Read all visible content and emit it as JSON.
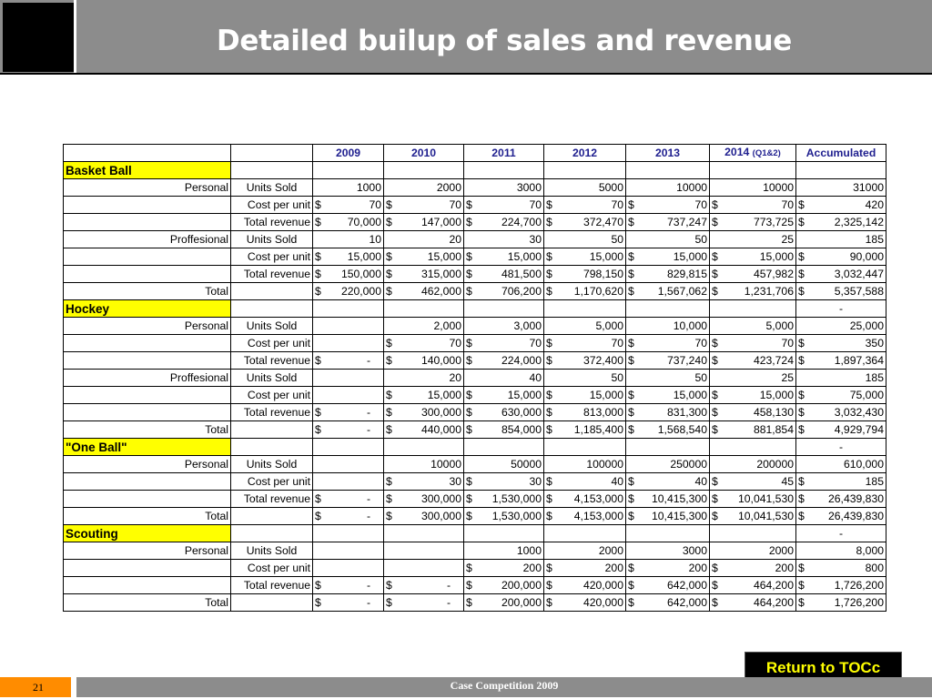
{
  "slide": {
    "title": "Detailed builup of sales and revenue",
    "page_number": "21",
    "footer_text": "Case Competition 2009",
    "return_button": "Return to TOCc"
  },
  "colors": {
    "title_bar": "#8c8c8c",
    "section_highlight": "#ffff00",
    "header_text": "#1f1f8f",
    "page_badge": "#ff8c00"
  },
  "table": {
    "headers": [
      "2009",
      "2010",
      "2011",
      "2012",
      "2013",
      "2014",
      "(Q1&2)",
      "Accumulated"
    ],
    "rows": [
      [
        "Basket Ball"
      ],
      [
        "Personal",
        "Units Sold",
        "",
        "1000",
        "",
        "2000",
        "",
        "3000",
        "",
        "5000",
        "",
        "10000",
        "",
        "10000",
        "",
        "31000"
      ],
      [
        "",
        "Cost per unit",
        "$",
        "70",
        "$",
        "70",
        "$",
        "70",
        "$",
        "70",
        "$",
        "70",
        "$",
        "70",
        "$",
        "420"
      ],
      [
        "",
        "Total revenue",
        "$",
        "70,000",
        "$",
        "147,000",
        "$",
        "224,700",
        "$",
        "372,470",
        "$",
        "737,247",
        "$",
        "773,725",
        "$",
        "2,325,142"
      ],
      [
        "Proffesional",
        "Units Sold",
        "",
        "10",
        "",
        "20",
        "",
        "30",
        "",
        "50",
        "",
        "50",
        "",
        "25",
        "",
        "185"
      ],
      [
        "",
        "Cost per unit",
        "$",
        "15,000",
        "$",
        "15,000",
        "$",
        "15,000",
        "$",
        "15,000",
        "$",
        "15,000",
        "$",
        "15,000",
        "$",
        "90,000"
      ],
      [
        "",
        "Total revenue",
        "$",
        "150,000",
        "$",
        "315,000",
        "$",
        "481,500",
        "$",
        "798,150",
        "$",
        "829,815",
        "$",
        "457,982",
        "$",
        "3,032,447"
      ],
      [
        "Total",
        "",
        "$",
        "220,000",
        "$",
        "462,000",
        "$",
        "706,200",
        "$",
        "1,170,620",
        "$",
        "1,567,062",
        "$",
        "1,231,706",
        "$",
        "5,357,588"
      ],
      [
        "Hockey",
        "-"
      ],
      [
        "Personal",
        "Units Sold",
        "",
        "",
        "",
        "2,000",
        "",
        "3,000",
        "",
        "5,000",
        "",
        "10,000",
        "",
        "5,000",
        "",
        "25,000"
      ],
      [
        "",
        "Cost per unit",
        "",
        "",
        "$",
        "70",
        "$",
        "70",
        "$",
        "70",
        "$",
        "70",
        "$",
        "70",
        "$",
        "350"
      ],
      [
        "",
        "Total revenue",
        "$",
        "-",
        "$",
        "140,000",
        "$",
        "224,000",
        "$",
        "372,400",
        "$",
        "737,240",
        "$",
        "423,724",
        "$",
        "1,897,364"
      ],
      [
        "Proffesional",
        "Units Sold",
        "",
        "",
        "",
        "20",
        "",
        "40",
        "",
        "50",
        "",
        "50",
        "",
        "25",
        "",
        "185"
      ],
      [
        "",
        "Cost per unit",
        "",
        "",
        "$",
        "15,000",
        "$",
        "15,000",
        "$",
        "15,000",
        "$",
        "15,000",
        "$",
        "15,000",
        "$",
        "75,000"
      ],
      [
        "",
        "Total revenue",
        "$",
        "-",
        "$",
        "300,000",
        "$",
        "630,000",
        "$",
        "813,000",
        "$",
        "831,300",
        "$",
        "458,130",
        "$",
        "3,032,430"
      ],
      [
        "Total",
        "",
        "$",
        "-",
        "$",
        "440,000",
        "$",
        "854,000",
        "$",
        "1,185,400",
        "$",
        "1,568,540",
        "$",
        "881,854",
        "$",
        "4,929,794"
      ],
      [
        "\"One Ball\"",
        "-"
      ],
      [
        "Personal",
        "Units Sold",
        "",
        "",
        "",
        "10000",
        "",
        "50000",
        "",
        "100000",
        "",
        "250000",
        "",
        "200000",
        "",
        "610,000"
      ],
      [
        "",
        "Cost per unit",
        "",
        "",
        "$",
        "30",
        "$",
        "30",
        "$",
        "40",
        "$",
        "40",
        "$",
        "45",
        "$",
        "185"
      ],
      [
        "",
        "Total revenue",
        "$",
        "-",
        "$",
        "300,000",
        "$",
        "1,530,000",
        "$",
        "4,153,000",
        "$",
        "10,415,300",
        "$",
        "10,041,530",
        "$",
        "26,439,830"
      ],
      [
        "Total",
        "",
        "$",
        "-",
        "$",
        "300,000",
        "$",
        "1,530,000",
        "$",
        "4,153,000",
        "$",
        "10,415,300",
        "$",
        "10,041,530",
        "$",
        "26,439,830"
      ],
      [
        "Scouting",
        "-"
      ],
      [
        "Personal",
        "Units Sold",
        "",
        "",
        "",
        "",
        "",
        "1000",
        "",
        "2000",
        "",
        "3000",
        "",
        "2000",
        "",
        "8,000"
      ],
      [
        "",
        "Cost per unit",
        "",
        "",
        "",
        "",
        "$",
        "200",
        "$",
        "200",
        "$",
        "200",
        "$",
        "200",
        "$",
        "800"
      ],
      [
        "",
        "Total revenue",
        "$",
        "-",
        "$",
        "-",
        "$",
        "200,000",
        "$",
        "420,000",
        "$",
        "642,000",
        "$",
        "464,200",
        "$",
        "1,726,200"
      ],
      [
        "Total",
        "",
        "$",
        "-",
        "$",
        "-",
        "$",
        "200,000",
        "$",
        "420,000",
        "$",
        "642,000",
        "$",
        "464,200",
        "$",
        "1,726,200"
      ]
    ]
  }
}
